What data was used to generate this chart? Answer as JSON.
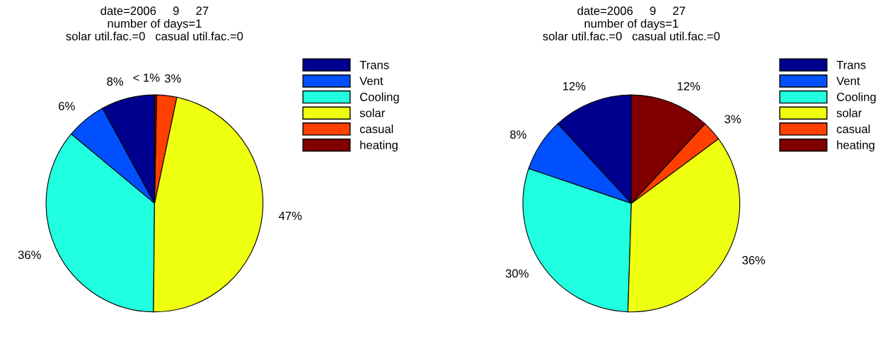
{
  "chart_data": [
    {
      "type": "pie",
      "title": "date=2006     9     27\nnumber of days=1\nsolar util.fac.=0   casual util.fac.=0",
      "categories": [
        "Trans",
        "Vent",
        "Cooling",
        "solar",
        "casual",
        "heating"
      ],
      "values": [
        8,
        6,
        36,
        47,
        3,
        0.3
      ],
      "value_labels": [
        "8%",
        "6%",
        "36%",
        "47%",
        "3%",
        "< 1%"
      ],
      "colors": [
        "#00008f",
        "#0050ff",
        "#20ffdf",
        "#efff10",
        "#ff4000",
        "#800000"
      ],
      "legend": "right"
    },
    {
      "type": "pie",
      "title": "date=2006     9     27\nnumber of days=1\nsolar util.fac.=0   casual util.fac.=0",
      "categories": [
        "Trans",
        "Vent",
        "Cooling",
        "solar",
        "casual",
        "heating"
      ],
      "values": [
        12,
        8,
        30,
        36,
        3,
        12
      ],
      "value_labels": [
        "12%",
        "8%",
        "30%",
        "36%",
        "3%",
        "12%"
      ],
      "colors": [
        "#00008f",
        "#0050ff",
        "#20ffdf",
        "#efff10",
        "#ff4000",
        "#800000"
      ],
      "legend": "right"
    }
  ]
}
